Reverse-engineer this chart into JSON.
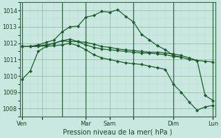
{
  "bg_color": "#c8e8e0",
  "grid_major_color": "#99bbaa",
  "grid_minor_color": "#b8d8cc",
  "line_color": "#1a5c2a",
  "xlabel": "Pression niveau de la mer( hPa )",
  "ylim": [
    1007.5,
    1014.5
  ],
  "yticks": [
    1008,
    1009,
    1010,
    1011,
    1012,
    1013,
    1014
  ],
  "figsize": [
    3.2,
    2.0
  ],
  "dpi": 100,
  "series": [
    {
      "x": [
        0,
        1,
        2,
        3,
        4,
        5,
        6,
        7,
        8,
        9,
        10,
        11,
        12,
        13,
        14,
        15,
        16,
        17,
        18,
        19,
        20,
        21,
        22,
        23,
        24
      ],
      "y": [
        1009.8,
        1010.3,
        1011.5,
        1011.8,
        1011.85,
        1011.9,
        1012.0,
        1011.85,
        1011.6,
        1011.3,
        1011.1,
        1011.0,
        1010.9,
        1010.8,
        1010.75,
        1010.7,
        1010.6,
        1010.5,
        1010.4,
        1009.5,
        1009.0,
        1008.4,
        1007.9,
        1008.1,
        1008.2
      ]
    },
    {
      "x": [
        0,
        1,
        2,
        3,
        4,
        5,
        6,
        7,
        8,
        9,
        10,
        11,
        12,
        13,
        14,
        15,
        16,
        17,
        18,
        19,
        20
      ],
      "y": [
        1011.8,
        1011.8,
        1011.8,
        1011.85,
        1012.0,
        1012.15,
        1012.1,
        1012.1,
        1011.9,
        1011.75,
        1011.65,
        1011.6,
        1011.55,
        1011.5,
        1011.45,
        1011.4,
        1011.4,
        1011.35,
        1011.3,
        1011.2,
        1011.15
      ]
    },
    {
      "x": [
        0,
        1,
        2,
        3,
        4,
        5,
        6,
        7,
        8,
        9,
        10,
        11,
        12,
        13,
        14,
        15,
        16,
        17,
        18,
        19,
        20,
        21,
        22,
        23,
        24
      ],
      "y": [
        1011.8,
        1011.8,
        1011.9,
        1012.05,
        1012.2,
        1012.7,
        1013.0,
        1013.05,
        1013.6,
        1013.7,
        1013.95,
        1013.9,
        1014.05,
        1013.65,
        1013.3,
        1012.55,
        1012.2,
        1011.85,
        1011.6,
        1011.25,
        1011.15,
        1011.0,
        1010.95,
        1010.9,
        1010.85
      ]
    },
    {
      "x": [
        0,
        1,
        2,
        3,
        4,
        5,
        6,
        7,
        8,
        9,
        10,
        11,
        12,
        13,
        14,
        15,
        16,
        17,
        18,
        19,
        20,
        21,
        22,
        23,
        24
      ],
      "y": [
        1011.8,
        1011.8,
        1011.85,
        1011.9,
        1012.0,
        1012.15,
        1012.25,
        1012.1,
        1012.05,
        1011.95,
        1011.8,
        1011.75,
        1011.65,
        1011.6,
        1011.55,
        1011.5,
        1011.45,
        1011.45,
        1011.4,
        1011.35,
        1011.25,
        1011.1,
        1010.95,
        1008.8,
        1008.5
      ]
    }
  ],
  "day_lines_x": [
    0,
    5,
    8,
    14,
    19,
    24
  ],
  "xtick_pos": [
    0,
    2.5,
    8,
    11,
    14,
    19,
    24
  ],
  "xtick_labels": [
    "Ven",
    "",
    "Mar",
    "Sam",
    "",
    "Dim",
    "Lun"
  ]
}
